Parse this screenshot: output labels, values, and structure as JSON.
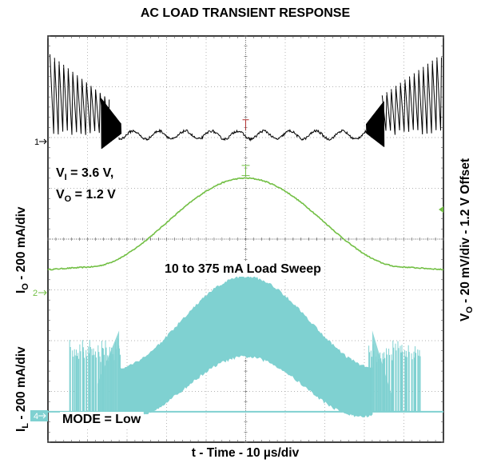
{
  "chart_data": {
    "type": "line",
    "title": "AC LOAD TRANSIENT RESPONSE",
    "xlabel": "t - Time - 10 µs/div",
    "ylabel_right": "V_O - 20 mV/div - 1.2 V Offset",
    "ylabel_left_upper": "I_O - 200 mA/div",
    "ylabel_left_lower": "I_L - 200 mA/div",
    "annotations": {
      "conditions_line1": "V_I = 3.6 V,",
      "conditions_line2": "V_O = 1.2 V",
      "load_sweep": "10 to 375 mA Load Sweep",
      "mode": "MODE = Low"
    },
    "x_divisions": 10,
    "y_divisions": 8,
    "x_range_div": [
      0,
      10
    ],
    "y_range_div": [
      0,
      8
    ],
    "grid": true,
    "channel_markers": [
      {
        "label": "1",
        "level_div": 6.2
      },
      {
        "label": "2",
        "level_div": 3.42
      },
      {
        "label": "4",
        "level_div": 0.6
      }
    ],
    "series": [
      {
        "name": "V_O",
        "color": "#000000",
        "behavior": "sawtooth ripple at light load, small continuous ripple at heavy load",
        "x_div": [
          0.0,
          1.55,
          1.8,
          8.2,
          8.45,
          10.0
        ],
        "y_div": [
          6.2,
          6.2,
          6.0,
          6.0,
          6.2,
          6.2
        ]
      },
      {
        "name": "I_O",
        "color": "#72bf44",
        "behavior": "sinusoidal 10 to 375 mA load sweep",
        "x_div": [
          0.0,
          1.0,
          2.0,
          3.0,
          4.0,
          5.0,
          6.0,
          7.0,
          8.0,
          9.0,
          10.0
        ],
        "y_div": [
          3.4,
          3.45,
          3.75,
          4.35,
          4.95,
          5.2,
          4.95,
          4.35,
          3.75,
          3.45,
          3.4
        ]
      },
      {
        "name": "I_L",
        "color": "#7fd1d1",
        "behavior": "burst pulses at light load, continuous ripple band at heavy load",
        "x_div": [
          0.0,
          1.8,
          3.0,
          4.0,
          5.0,
          6.0,
          7.0,
          8.2,
          10.0
        ],
        "y_div": [
          0.6,
          1.05,
          2.05,
          2.7,
          3.0,
          2.7,
          2.05,
          1.05,
          0.6
        ]
      }
    ]
  }
}
